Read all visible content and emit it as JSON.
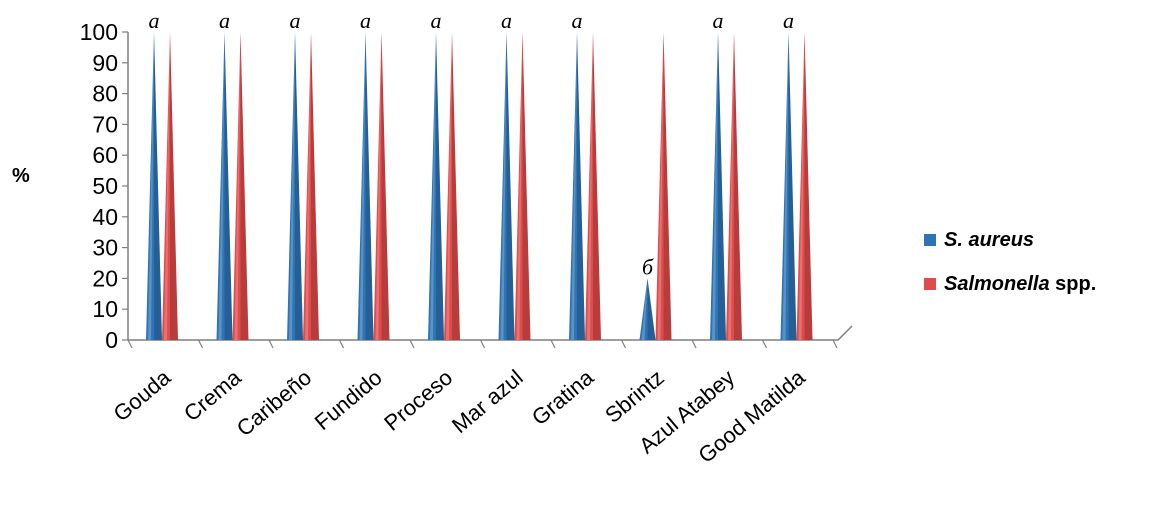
{
  "chart_data": {
    "type": "bar",
    "categories": [
      "Gouda",
      "Crema",
      "Caribeño",
      "Fundido",
      "Proceso",
      "Mar azul",
      "Gratina",
      "Sbrintz",
      "Azul Atabey",
      "Good Matilda"
    ],
    "series": [
      {
        "name": "S. aureus",
        "legend_italic": "S. aureus",
        "legend_rest": "",
        "color": "#2e75b6",
        "values": [
          100,
          100,
          100,
          100,
          100,
          100,
          100,
          20,
          100,
          100
        ]
      },
      {
        "name": "Salmonella spp.",
        "legend_italic": "Salmonella",
        "legend_rest": " spp.",
        "color": "#e04b4b",
        "values": [
          100,
          100,
          100,
          100,
          100,
          100,
          100,
          100,
          100,
          100
        ]
      }
    ],
    "annotations": [
      "a",
      "a",
      "a",
      "a",
      "a",
      "a",
      "a",
      "б",
      "a",
      "a"
    ],
    "ylabel": "%",
    "xlabel": "",
    "ylim": [
      0,
      100
    ],
    "yticks": [
      0,
      10,
      20,
      30,
      40,
      50,
      60,
      70,
      80,
      90,
      100
    ],
    "bar_shape": "cone-3d",
    "grid": false,
    "legend_position": "right"
  }
}
